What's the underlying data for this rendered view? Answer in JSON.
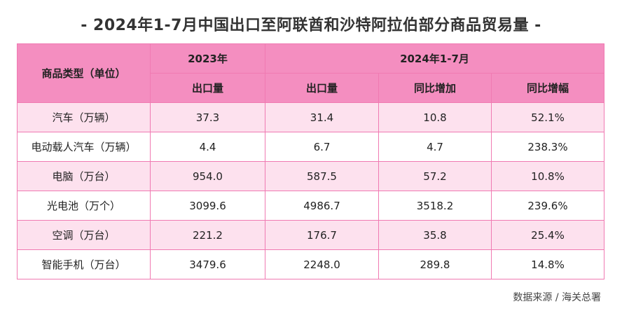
{
  "title": "- 2024年1-7月中国出口至阿联酋和沙特阿拉伯部分商品贸易量 -",
  "table": {
    "header": {
      "category": "商品类型（单位）",
      "year2023": "2023年",
      "year2024": "2024年1-7月",
      "export2023": "出口量",
      "export2024": "出口量",
      "yoy_increase": "同比增加",
      "yoy_growth": "同比增幅"
    },
    "rows": [
      {
        "category": "汽车（万辆）",
        "export2023": "37.3",
        "export2024": "31.4",
        "yoy_increase": "10.8",
        "yoy_growth": "52.1%"
      },
      {
        "category": "电动载人汽车（万辆）",
        "export2023": "4.4",
        "export2024": "6.7",
        "yoy_increase": "4.7",
        "yoy_growth": "238.3%"
      },
      {
        "category": "电脑（万台）",
        "export2023": "954.0",
        "export2024": "587.5",
        "yoy_increase": "57.2",
        "yoy_growth": "10.8%"
      },
      {
        "category": "光电池（万个）",
        "export2023": "3099.6",
        "export2024": "4986.7",
        "yoy_increase": "3518.2",
        "yoy_growth": "239.6%"
      },
      {
        "category": "空调（万台）",
        "export2023": "221.2",
        "export2024": "176.7",
        "yoy_increase": "35.8",
        "yoy_growth": "25.4%"
      },
      {
        "category": "智能手机（万台）",
        "export2023": "3479.6",
        "export2024": "2248.0",
        "yoy_increase": "289.8",
        "yoy_growth": "14.8%"
      }
    ]
  },
  "source": "数据来源 / 海关总署",
  "colors": {
    "header_bg": "#f48ec0",
    "alt_row_bg": "#fde1ee",
    "border": "#f07ab2"
  }
}
